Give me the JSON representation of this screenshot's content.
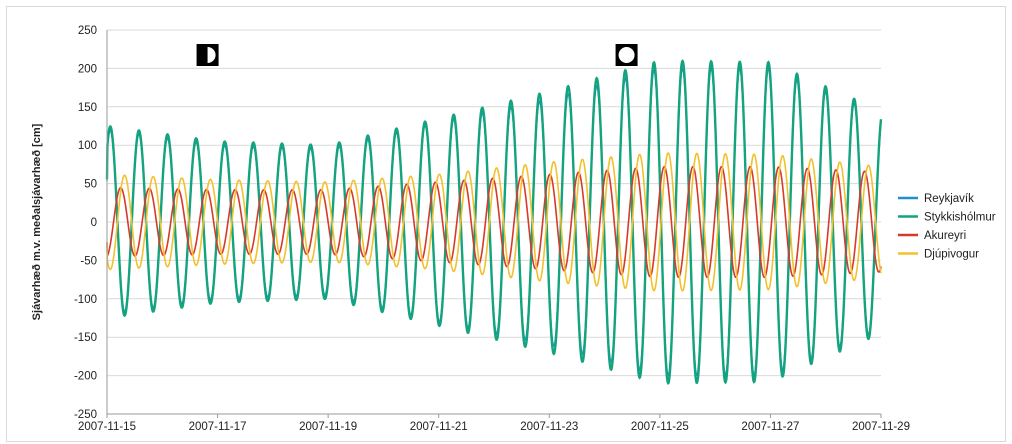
{
  "chart_data": {
    "type": "line",
    "ylabel": "Sjávarhæð m.v. meðalsjávarhæð [cm]",
    "xlabel": "",
    "title": "",
    "ylim": [
      -250,
      250
    ],
    "yticks": [
      250,
      200,
      150,
      100,
      50,
      0,
      -50,
      -100,
      -150,
      -200,
      -250
    ],
    "x_range": [
      "2007-11-15",
      "2007-11-29"
    ],
    "xticks": [
      "2007-11-15",
      "2007-11-17",
      "2007-11-19",
      "2007-11-21",
      "2007-11-23",
      "2007-11-25",
      "2007-11-27",
      "2007-11-29"
    ],
    "grid": "horizontal",
    "legend_position": "right",
    "moon_phases": [
      {
        "date": "2007-11-17",
        "phase": "first-quarter"
      },
      {
        "date": "2007-11-24",
        "phase": "full-moon"
      }
    ],
    "series": [
      {
        "name": "Reykjavík",
        "color": "#1f8fd1",
        "amplitude_peaks": [
          [
            0,
            120
          ],
          [
            2,
            100
          ],
          [
            4,
            95
          ],
          [
            6,
            130
          ],
          [
            8,
            160
          ],
          [
            10,
            200
          ],
          [
            12,
            200
          ],
          [
            14,
            140
          ]
        ],
        "phase_offset_hours": 0
      },
      {
        "name": "Stykkishólmur",
        "color": "#13a37d",
        "amplitude_peaks": [
          [
            0,
            125
          ],
          [
            2,
            105
          ],
          [
            4,
            100
          ],
          [
            6,
            135
          ],
          [
            8,
            170
          ],
          [
            10,
            210
          ],
          [
            12,
            208
          ],
          [
            14,
            145
          ]
        ],
        "phase_offset_hours": 0
      },
      {
        "name": "Akureyri",
        "color": "#d63a2a",
        "amplitude_peaks": [
          [
            0,
            45
          ],
          [
            2,
            42
          ],
          [
            4,
            42
          ],
          [
            6,
            52
          ],
          [
            8,
            62
          ],
          [
            10,
            72
          ],
          [
            12,
            72
          ],
          [
            14,
            65
          ]
        ],
        "phase_offset_hours": 4.5
      },
      {
        "name": "Djúpivogur",
        "color": "#f2c12e",
        "amplitude_peaks": [
          [
            0,
            62
          ],
          [
            2,
            55
          ],
          [
            4,
            52
          ],
          [
            6,
            62
          ],
          [
            8,
            78
          ],
          [
            10,
            90
          ],
          [
            12,
            88
          ],
          [
            14,
            72
          ]
        ],
        "phase_offset_hours": 6.2
      }
    ]
  }
}
